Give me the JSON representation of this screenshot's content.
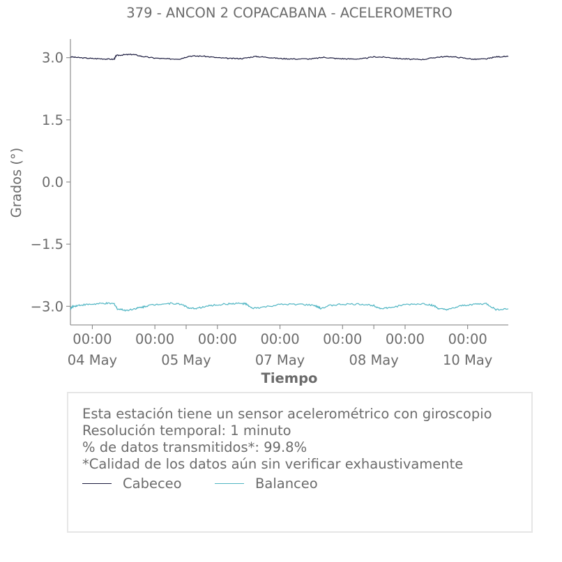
{
  "chart_data": {
    "type": "line",
    "title": "379 - ANCON 2 COPACABANA - ACELEROMETRO",
    "xlabel": "Tiempo",
    "ylabel": "Grados (°)",
    "ylim": [
      -3.45,
      3.45
    ],
    "xlim": [
      -0.35,
      6.65
    ],
    "yticks": [
      3.0,
      1.5,
      0.0,
      -1.5,
      -3.0
    ],
    "yticklabels": [
      "3.0",
      "1.5",
      "0.0",
      "−1.5",
      "−3.0"
    ],
    "xticks": [
      {
        "x": 0,
        "line1": "00:00",
        "line2": "04 May"
      },
      {
        "x": 1,
        "line1": "00:00",
        "line2": ""
      },
      {
        "x": 1.5,
        "line1": "",
        "line2": "05 May"
      },
      {
        "x": 2,
        "line1": "00:00",
        "line2": ""
      },
      {
        "x": 3,
        "line1": "00:00",
        "line2": "07 May"
      },
      {
        "x": 4,
        "line1": "00:00",
        "line2": ""
      },
      {
        "x": 4.5,
        "line1": "",
        "line2": "08 May"
      },
      {
        "x": 5,
        "line1": "00:00",
        "line2": ""
      },
      {
        "x": 6,
        "line1": "00:00",
        "line2": "10 May"
      }
    ],
    "series": [
      {
        "name": "Cabeceo",
        "color": "#1a1a3e",
        "x": [
          -0.35,
          -0.2,
          0,
          0.2,
          0.35,
          0.38,
          0.5,
          0.65,
          0.8,
          1.0,
          1.2,
          1.4,
          1.55,
          1.75,
          2.0,
          2.2,
          2.4,
          2.6,
          2.8,
          3.0,
          3.2,
          3.5,
          3.7,
          3.9,
          4.1,
          4.3,
          4.5,
          4.7,
          4.9,
          5.1,
          5.3,
          5.5,
          5.7,
          5.9,
          6.1,
          6.3,
          6.45,
          6.65
        ],
        "y": [
          3.02,
          3.0,
          2.98,
          2.97,
          2.96,
          3.05,
          3.07,
          3.08,
          3.03,
          2.99,
          2.97,
          2.97,
          3.04,
          3.04,
          3.0,
          2.98,
          2.98,
          3.03,
          3.01,
          2.98,
          2.97,
          2.97,
          3.01,
          2.98,
          2.97,
          2.97,
          3.02,
          3.01,
          2.98,
          2.96,
          2.96,
          3.01,
          3.03,
          3.0,
          2.96,
          2.97,
          3.02,
          3.03
        ]
      },
      {
        "name": "Balanceo",
        "color": "#4fb5c3",
        "x": [
          -0.35,
          -0.3,
          -0.2,
          0,
          0.2,
          0.35,
          0.4,
          0.55,
          0.7,
          0.8,
          0.9,
          1.1,
          1.3,
          1.45,
          1.55,
          1.7,
          1.9,
          2.1,
          2.3,
          2.45,
          2.55,
          2.7,
          3.0,
          3.3,
          3.55,
          3.65,
          3.8,
          4.0,
          4.3,
          4.5,
          4.6,
          4.75,
          5.0,
          5.3,
          5.45,
          5.55,
          5.7,
          5.9,
          6.1,
          6.3,
          6.45,
          6.65
        ],
        "y": [
          -3.05,
          -3.0,
          -2.97,
          -2.95,
          -2.93,
          -2.94,
          -3.06,
          -3.1,
          -3.05,
          -3.02,
          -2.98,
          -2.94,
          -2.93,
          -2.96,
          -3.06,
          -3.04,
          -2.98,
          -2.95,
          -2.93,
          -2.94,
          -3.05,
          -3.03,
          -2.96,
          -2.95,
          -2.98,
          -3.05,
          -2.98,
          -2.95,
          -2.95,
          -2.98,
          -3.05,
          -3.04,
          -2.96,
          -2.94,
          -2.98,
          -3.07,
          -3.08,
          -2.99,
          -2.95,
          -2.94,
          -3.08,
          -3.06
        ]
      }
    ],
    "grid": false,
    "legend_position": "bottom"
  },
  "notes": [
    "Esta estación tiene un sensor acelerométrico con giroscopio",
    "Resolución temporal: 1 minuto",
    "% de datos transmitidos*: 99.8%",
    "*Calidad de los datos aún sin verificar exhaustivamente"
  ],
  "colors": {
    "text": "#6b6b6b",
    "axis": "#7a7a7a",
    "box_border": "#e6e6e6"
  }
}
